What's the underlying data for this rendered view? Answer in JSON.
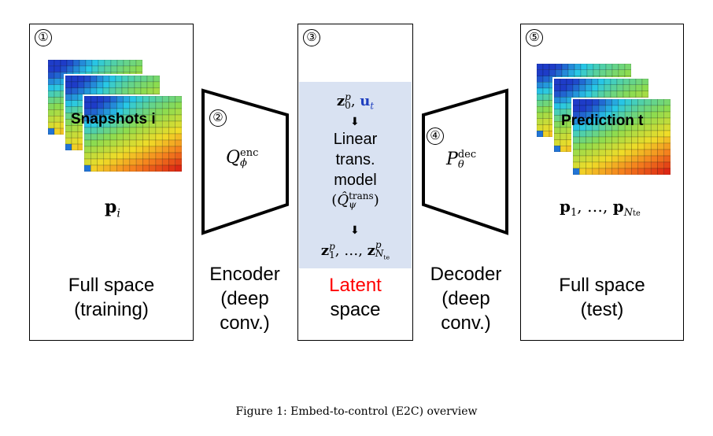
{
  "panels": {
    "p1": {
      "num": "①",
      "snapshot_label": "Snapshots i",
      "var": "p",
      "var_sub": "i",
      "line1": "Full space",
      "line2": "(training)"
    },
    "p2": {
      "num": "②",
      "sym": "Q",
      "sym_sup": "enc",
      "sym_sub": "ϕ",
      "line1": "Encoder",
      "line2": "(deep",
      "line3": "conv.)"
    },
    "p3": {
      "num": "③",
      "top_z": "z",
      "top_z_sup": "p",
      "top_z_sub": "0",
      "top_u": "u",
      "top_u_sub": "t",
      "m1": "Linear",
      "m2": "trans.",
      "m3": "model",
      "m4_open": "(",
      "m4_sym": "Q̂",
      "m4_sup": "trans",
      "m4_sub": "ψ",
      "m4_close": ")",
      "bottom": "z",
      "bottom_sup": "p",
      "bottom_sub1": "1",
      "bottom_sep": ", …, ",
      "bottom_subN": "N",
      "bottom_subte": "te",
      "line1": "Latent",
      "line2": "space"
    },
    "p4": {
      "num": "④",
      "sym": "P",
      "sym_sup": "dec",
      "sym_sub": "θ",
      "line1": "Decoder",
      "line2": "(deep",
      "line3": "conv.)"
    },
    "p5": {
      "num": "⑤",
      "prediction_label": "Prediction t",
      "var": "p",
      "var_sub1": "1",
      "var_sep": ", …, ",
      "var_subN": "N",
      "var_subte": "te",
      "line1": "Full space",
      "line2": "(test)"
    }
  },
  "caption": "Figure 1: Embed-to-control (E2C) overview",
  "colors": {
    "latent_bg": "#d9e2f2",
    "latent_text": "#ff0000",
    "u_color": "#1f3fbf"
  },
  "icons": [
    "snapshot-heatmap",
    "encoder-trapezoid",
    "decoder-trapezoid",
    "down-arrow-icon"
  ]
}
